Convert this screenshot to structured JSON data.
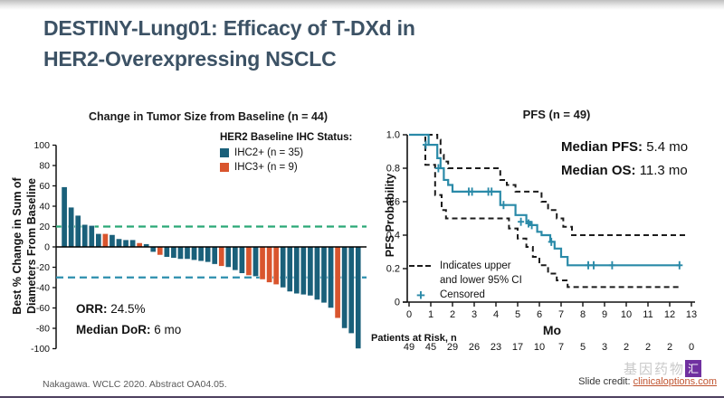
{
  "slide": {
    "title_line1": "DESTINY-Lung01: Efficacy of T-DXd in",
    "title_line2": "HER2-Overexpressing NSCLC",
    "footer": {
      "citation": "Nakagawa. WCLC 2020. Abstract OA04.05.",
      "credit_label": "Slide credit: ",
      "credit_link": "clinicaloptions.com",
      "watermark_text": "基因药物",
      "watermark_box": "汇"
    }
  },
  "colors": {
    "title": "#3c5265",
    "ihc2_teal": "#1a607a",
    "ihc3_orange": "#d9552e",
    "km_teal": "#2a8aa8",
    "ci_black": "#1b1b1b",
    "upper_ref_green": "#2aa876",
    "lower_ref_blue": "#2d8fae",
    "footer_line_purple": "#4d3f5e",
    "link_orange": "#c0532f",
    "watermark_purple": "#7030a0"
  },
  "icons": {
    "censored_plus": "+"
  },
  "chart_data": [
    {
      "type": "bar",
      "subtype": "waterfall",
      "title": "Change in Tumor Size from Baseline (n = 44)",
      "ylabel_line1": "Best % Change in Sum of",
      "ylabel_line2": "Diameters From Baseline",
      "ylim": [
        -100,
        100
      ],
      "yticks": [
        100,
        80,
        60,
        40,
        20,
        0,
        -20,
        -40,
        -60,
        -80,
        -100
      ],
      "ref_lines": [
        {
          "y": 20,
          "style": "dashed",
          "color_key": "upper_ref_green"
        },
        {
          "y": -30,
          "style": "dashed",
          "color_key": "lower_ref_blue"
        }
      ],
      "legend_title": "HER2 Baseline IHC Status:",
      "series": [
        {
          "name": "IHC2+ (n = 35)",
          "ihc": 2,
          "color_key": "ihc2_teal"
        },
        {
          "name": "IHC3+ (n = 9)",
          "ihc": 3,
          "color_key": "ihc3_orange"
        }
      ],
      "bars": [
        [
          59,
          2
        ],
        [
          39,
          2
        ],
        [
          31,
          2
        ],
        [
          22,
          2
        ],
        [
          21,
          2
        ],
        [
          13,
          2
        ],
        [
          13,
          3
        ],
        [
          12,
          2
        ],
        [
          8,
          2
        ],
        [
          7,
          2
        ],
        [
          7,
          2
        ],
        [
          4,
          3
        ],
        [
          3,
          2
        ],
        [
          -5,
          2
        ],
        [
          -8,
          3
        ],
        [
          -10,
          2
        ],
        [
          -11,
          2
        ],
        [
          -12,
          2
        ],
        [
          -12,
          2
        ],
        [
          -13,
          2
        ],
        [
          -14,
          2
        ],
        [
          -15,
          2
        ],
        [
          -17,
          2
        ],
        [
          -19,
          3
        ],
        [
          -20,
          2
        ],
        [
          -23,
          2
        ],
        [
          -26,
          2
        ],
        [
          -28,
          3
        ],
        [
          -29,
          2
        ],
        [
          -32,
          3
        ],
        [
          -35,
          3
        ],
        [
          -37,
          3
        ],
        [
          -40,
          2
        ],
        [
          -44,
          2
        ],
        [
          -46,
          2
        ],
        [
          -47,
          2
        ],
        [
          -48,
          2
        ],
        [
          -52,
          2
        ],
        [
          -55,
          2
        ],
        [
          -60,
          2
        ],
        [
          -70,
          3
        ],
        [
          -80,
          2
        ],
        [
          -85,
          2
        ],
        [
          -100,
          2
        ]
      ],
      "annotations": [
        {
          "label": "ORR:",
          "value": "24.5%"
        },
        {
          "label": "Median DoR:",
          "value": "6 mo"
        }
      ]
    },
    {
      "type": "line",
      "subtype": "kaplan-meier",
      "title": "PFS (n = 49)",
      "ylabel": "PFS Probability",
      "xlabel": "Mo",
      "xlim": [
        0,
        13
      ],
      "ylim": [
        0,
        1
      ],
      "xticks": [
        0,
        1,
        2,
        3,
        4,
        5,
        6,
        7,
        8,
        9,
        10,
        11,
        12,
        13
      ],
      "yticks": [
        "1.0",
        "0.8",
        "0.6",
        "0.4",
        "0.2",
        "0"
      ],
      "stats": [
        {
          "label": "Median PFS:",
          "value": "5.4 mo"
        },
        {
          "label": "Median OS:",
          "value": "11.3 mo"
        }
      ],
      "legend": {
        "ci_line1": "Indicates upper",
        "ci_line2": "and lower 95% CI",
        "censored": "Censored"
      },
      "series": [
        {
          "name": "PFS",
          "role": "km",
          "points": [
            [
              0,
              1.0
            ],
            [
              0.9,
              0.94
            ],
            [
              1.3,
              0.86
            ],
            [
              1.45,
              0.8
            ],
            [
              1.6,
              0.73
            ],
            [
              1.8,
              0.7
            ],
            [
              2.0,
              0.66
            ],
            [
              4.2,
              0.58
            ],
            [
              4.9,
              0.52
            ],
            [
              5.4,
              0.48
            ],
            [
              5.6,
              0.46
            ],
            [
              5.9,
              0.42
            ],
            [
              6.1,
              0.4
            ],
            [
              6.5,
              0.36
            ],
            [
              6.7,
              0.32
            ],
            [
              7.0,
              0.27
            ],
            [
              7.3,
              0.22
            ],
            [
              12.5,
              0.22
            ]
          ]
        },
        {
          "name": "Upper 95% CI",
          "role": "upper",
          "points": [
            [
              0,
              1.0
            ],
            [
              1.3,
              0.97
            ],
            [
              1.45,
              0.88
            ],
            [
              1.6,
              0.84
            ],
            [
              1.8,
              0.8
            ],
            [
              4.2,
              0.73
            ],
            [
              4.5,
              0.7
            ],
            [
              4.9,
              0.66
            ],
            [
              6.1,
              0.6
            ],
            [
              6.4,
              0.55
            ],
            [
              6.8,
              0.5
            ],
            [
              7.1,
              0.45
            ],
            [
              7.5,
              0.4
            ],
            [
              12.8,
              0.4
            ]
          ]
        },
        {
          "name": "Lower 95% CI",
          "role": "lower",
          "points": [
            [
              0,
              1.0
            ],
            [
              0.75,
              0.82
            ],
            [
              1.2,
              0.64
            ],
            [
              1.5,
              0.55
            ],
            [
              1.7,
              0.5
            ],
            [
              4.6,
              0.44
            ],
            [
              5.0,
              0.38
            ],
            [
              5.4,
              0.33
            ],
            [
              5.7,
              0.27
            ],
            [
              6.0,
              0.22
            ],
            [
              6.4,
              0.17
            ],
            [
              6.8,
              0.13
            ],
            [
              7.3,
              0.09
            ],
            [
              12.5,
              0.09
            ]
          ]
        }
      ],
      "censored": [
        [
          0.77,
          0.94
        ],
        [
          1.35,
          0.8
        ],
        [
          2.75,
          0.66
        ],
        [
          2.9,
          0.66
        ],
        [
          3.65,
          0.66
        ],
        [
          3.8,
          0.66
        ],
        [
          4.35,
          0.58
        ],
        [
          5.15,
          0.48
        ],
        [
          5.5,
          0.47
        ],
        [
          5.65,
          0.46
        ],
        [
          6.55,
          0.36
        ],
        [
          8.25,
          0.22
        ],
        [
          8.5,
          0.22
        ],
        [
          9.35,
          0.22
        ],
        [
          12.45,
          0.22
        ]
      ],
      "risk_table": {
        "label": "Patients at Risk, n",
        "values": [
          49,
          45,
          29,
          26,
          23,
          17,
          10,
          7,
          5,
          3,
          2,
          2,
          2,
          0
        ]
      }
    }
  ]
}
